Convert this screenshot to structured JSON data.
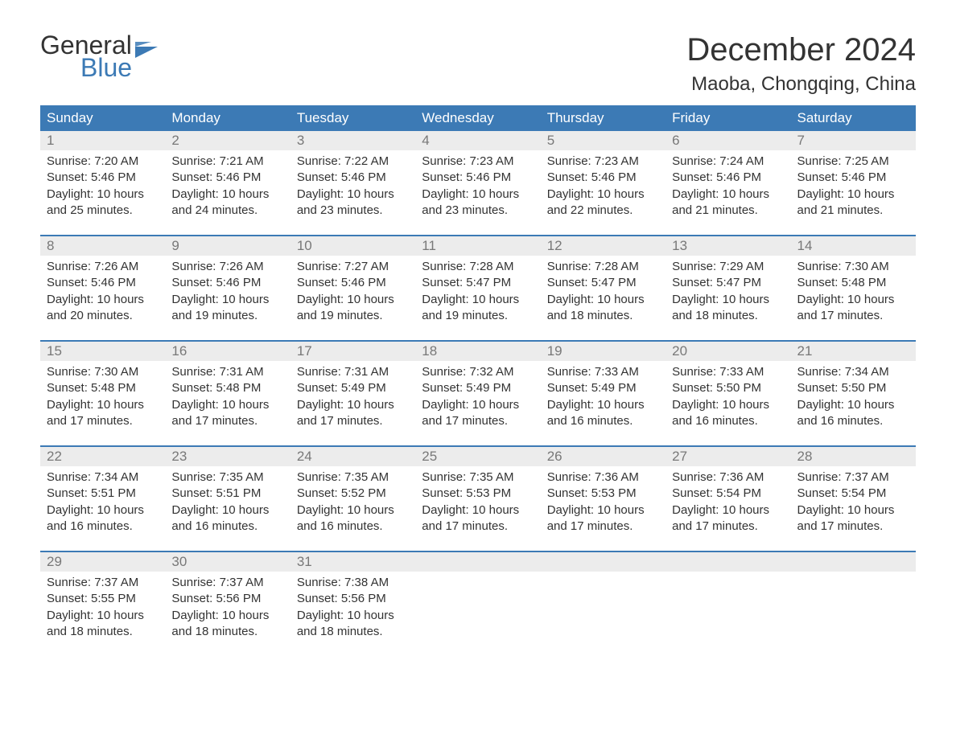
{
  "logo": {
    "line1": "General",
    "line2": "Blue",
    "flag_color": "#3c7ab5"
  },
  "title": "December 2024",
  "location": "Maoba, Chongqing, China",
  "colors": {
    "header_bg": "#3c7ab5",
    "header_text": "#ffffff",
    "daynum_bg": "#ececec",
    "daynum_text": "#787878",
    "body_text": "#333333",
    "separator": "#3c7ab5",
    "page_bg": "#ffffff"
  },
  "typography": {
    "title_fontsize": 40,
    "location_fontsize": 24,
    "dayheader_fontsize": 17,
    "daynum_fontsize": 17,
    "content_fontsize": 15,
    "font_family": "Arial"
  },
  "day_headers": [
    "Sunday",
    "Monday",
    "Tuesday",
    "Wednesday",
    "Thursday",
    "Friday",
    "Saturday"
  ],
  "weeks": [
    [
      {
        "n": "1",
        "sunrise": "7:20 AM",
        "sunset": "5:46 PM",
        "daylight": "10 hours and 25 minutes."
      },
      {
        "n": "2",
        "sunrise": "7:21 AM",
        "sunset": "5:46 PM",
        "daylight": "10 hours and 24 minutes."
      },
      {
        "n": "3",
        "sunrise": "7:22 AM",
        "sunset": "5:46 PM",
        "daylight": "10 hours and 23 minutes."
      },
      {
        "n": "4",
        "sunrise": "7:23 AM",
        "sunset": "5:46 PM",
        "daylight": "10 hours and 23 minutes."
      },
      {
        "n": "5",
        "sunrise": "7:23 AM",
        "sunset": "5:46 PM",
        "daylight": "10 hours and 22 minutes."
      },
      {
        "n": "6",
        "sunrise": "7:24 AM",
        "sunset": "5:46 PM",
        "daylight": "10 hours and 21 minutes."
      },
      {
        "n": "7",
        "sunrise": "7:25 AM",
        "sunset": "5:46 PM",
        "daylight": "10 hours and 21 minutes."
      }
    ],
    [
      {
        "n": "8",
        "sunrise": "7:26 AM",
        "sunset": "5:46 PM",
        "daylight": "10 hours and 20 minutes."
      },
      {
        "n": "9",
        "sunrise": "7:26 AM",
        "sunset": "5:46 PM",
        "daylight": "10 hours and 19 minutes."
      },
      {
        "n": "10",
        "sunrise": "7:27 AM",
        "sunset": "5:46 PM",
        "daylight": "10 hours and 19 minutes."
      },
      {
        "n": "11",
        "sunrise": "7:28 AM",
        "sunset": "5:47 PM",
        "daylight": "10 hours and 19 minutes."
      },
      {
        "n": "12",
        "sunrise": "7:28 AM",
        "sunset": "5:47 PM",
        "daylight": "10 hours and 18 minutes."
      },
      {
        "n": "13",
        "sunrise": "7:29 AM",
        "sunset": "5:47 PM",
        "daylight": "10 hours and 18 minutes."
      },
      {
        "n": "14",
        "sunrise": "7:30 AM",
        "sunset": "5:48 PM",
        "daylight": "10 hours and 17 minutes."
      }
    ],
    [
      {
        "n": "15",
        "sunrise": "7:30 AM",
        "sunset": "5:48 PM",
        "daylight": "10 hours and 17 minutes."
      },
      {
        "n": "16",
        "sunrise": "7:31 AM",
        "sunset": "5:48 PM",
        "daylight": "10 hours and 17 minutes."
      },
      {
        "n": "17",
        "sunrise": "7:31 AM",
        "sunset": "5:49 PM",
        "daylight": "10 hours and 17 minutes."
      },
      {
        "n": "18",
        "sunrise": "7:32 AM",
        "sunset": "5:49 PM",
        "daylight": "10 hours and 17 minutes."
      },
      {
        "n": "19",
        "sunrise": "7:33 AM",
        "sunset": "5:49 PM",
        "daylight": "10 hours and 16 minutes."
      },
      {
        "n": "20",
        "sunrise": "7:33 AM",
        "sunset": "5:50 PM",
        "daylight": "10 hours and 16 minutes."
      },
      {
        "n": "21",
        "sunrise": "7:34 AM",
        "sunset": "5:50 PM",
        "daylight": "10 hours and 16 minutes."
      }
    ],
    [
      {
        "n": "22",
        "sunrise": "7:34 AM",
        "sunset": "5:51 PM",
        "daylight": "10 hours and 16 minutes."
      },
      {
        "n": "23",
        "sunrise": "7:35 AM",
        "sunset": "5:51 PM",
        "daylight": "10 hours and 16 minutes."
      },
      {
        "n": "24",
        "sunrise": "7:35 AM",
        "sunset": "5:52 PM",
        "daylight": "10 hours and 16 minutes."
      },
      {
        "n": "25",
        "sunrise": "7:35 AM",
        "sunset": "5:53 PM",
        "daylight": "10 hours and 17 minutes."
      },
      {
        "n": "26",
        "sunrise": "7:36 AM",
        "sunset": "5:53 PM",
        "daylight": "10 hours and 17 minutes."
      },
      {
        "n": "27",
        "sunrise": "7:36 AM",
        "sunset": "5:54 PM",
        "daylight": "10 hours and 17 minutes."
      },
      {
        "n": "28",
        "sunrise": "7:37 AM",
        "sunset": "5:54 PM",
        "daylight": "10 hours and 17 minutes."
      }
    ],
    [
      {
        "n": "29",
        "sunrise": "7:37 AM",
        "sunset": "5:55 PM",
        "daylight": "10 hours and 18 minutes."
      },
      {
        "n": "30",
        "sunrise": "7:37 AM",
        "sunset": "5:56 PM",
        "daylight": "10 hours and 18 minutes."
      },
      {
        "n": "31",
        "sunrise": "7:38 AM",
        "sunset": "5:56 PM",
        "daylight": "10 hours and 18 minutes."
      },
      null,
      null,
      null,
      null
    ]
  ],
  "labels": {
    "sunrise": "Sunrise:",
    "sunset": "Sunset:",
    "daylight": "Daylight:"
  }
}
